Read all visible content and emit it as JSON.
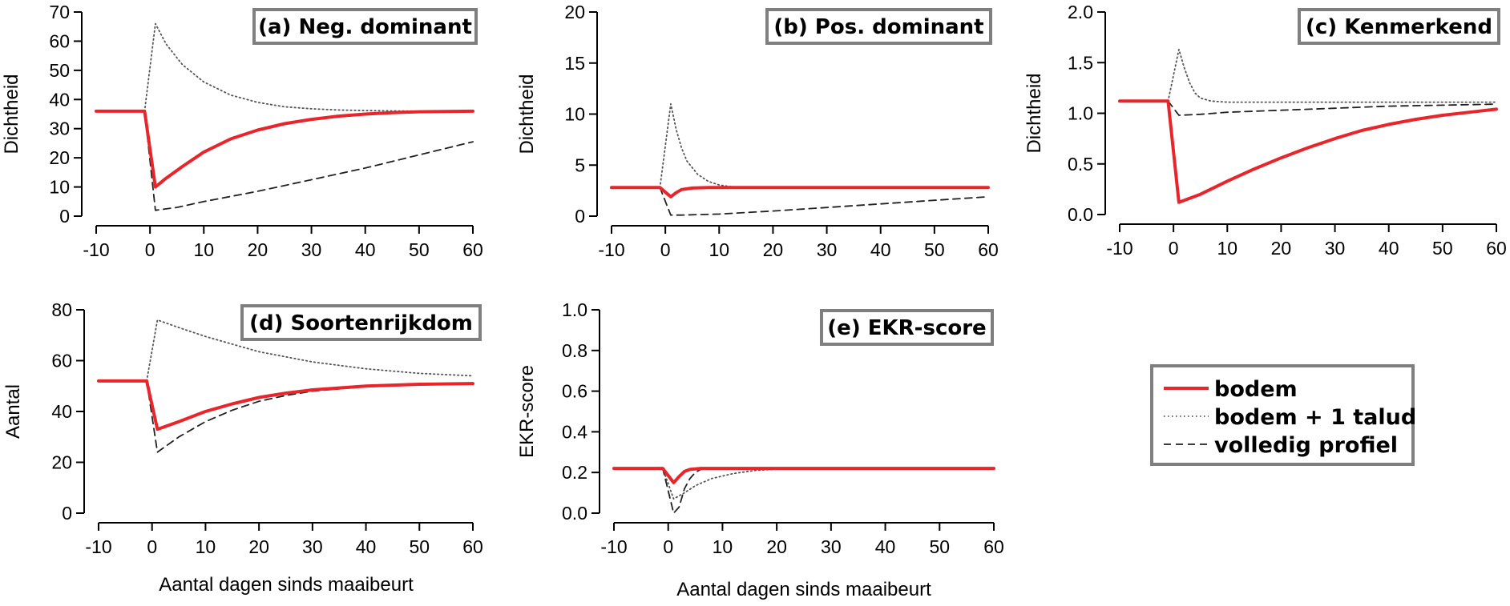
{
  "figure": {
    "xlabel_bottom": "Aantal dagen sinds maaibeurt",
    "legend": {
      "entries": [
        {
          "label": "bodem",
          "style": "solid",
          "color": "#e8252a"
        },
        {
          "label": "bodem + 1 talud",
          "style": "dotted",
          "color": "#555555"
        },
        {
          "label": "volledig profiel",
          "style": "dashed",
          "color": "#222222"
        }
      ],
      "placement": "bottom-right"
    },
    "colors": {
      "bodem": "#e8252a",
      "talud": "#555555",
      "profiel": "#222222",
      "title_box_border": "#7f7f7f"
    }
  },
  "chart_data": [
    {
      "type": "line",
      "title": "(a) Neg. dominant",
      "ylabel": "Dichtheid",
      "xlabel": "",
      "xlim": [
        -10,
        60
      ],
      "ylim": [
        0,
        70
      ],
      "xticks": [
        "-10",
        "0",
        "10",
        "20",
        "30",
        "40",
        "50",
        "60"
      ],
      "yticks": [
        "0",
        "10",
        "20",
        "30",
        "40",
        "50",
        "60",
        "70"
      ],
      "series": [
        {
          "name": "bodem",
          "x": [
            -10,
            -1,
            1,
            3,
            6,
            10,
            15,
            20,
            25,
            30,
            35,
            40,
            45,
            50,
            55,
            60
          ],
          "y": [
            36,
            36,
            10,
            13,
            17,
            22,
            26.5,
            29.5,
            31.7,
            33.2,
            34.3,
            35,
            35.5,
            35.8,
            35.9,
            36
          ]
        },
        {
          "name": "bodem + 1 talud",
          "x": [
            -10,
            -1,
            1,
            3,
            6,
            10,
            15,
            20,
            25,
            30,
            35,
            40,
            45,
            50,
            55,
            60
          ],
          "y": [
            36,
            36,
            66,
            59,
            52,
            46,
            41.5,
            39,
            37.5,
            36.8,
            36.4,
            36.2,
            36.1,
            36,
            36,
            36
          ]
        },
        {
          "name": "volledig profiel",
          "x": [
            -10,
            -1,
            1,
            5,
            10,
            20,
            30,
            40,
            50,
            60
          ],
          "y": [
            36,
            36,
            2,
            3,
            5,
            8.5,
            12.5,
            16.5,
            21,
            25.5
          ]
        }
      ]
    },
    {
      "type": "line",
      "title": "(b) Pos. dominant",
      "ylabel": "Dichtheid",
      "xlabel": "",
      "xlim": [
        -10,
        60
      ],
      "ylim": [
        0,
        20
      ],
      "xticks": [
        "-10",
        "0",
        "10",
        "20",
        "30",
        "40",
        "50",
        "60"
      ],
      "yticks": [
        "0",
        "5",
        "10",
        "15",
        "20"
      ],
      "series": [
        {
          "name": "bodem",
          "x": [
            -10,
            -1,
            1,
            2,
            3,
            5,
            8,
            12,
            60
          ],
          "y": [
            2.8,
            2.8,
            1.9,
            2.3,
            2.6,
            2.75,
            2.8,
            2.8,
            2.8
          ]
        },
        {
          "name": "bodem + 1 talud",
          "x": [
            -10,
            -1,
            1,
            2,
            3,
            4,
            6,
            8,
            10,
            12,
            14,
            60
          ],
          "y": [
            2.8,
            2.8,
            11,
            8.5,
            6.7,
            5.4,
            4.1,
            3.4,
            3.05,
            2.9,
            2.8,
            2.8
          ]
        },
        {
          "name": "volledig profiel",
          "x": [
            -10,
            -1,
            1,
            3,
            6,
            10,
            20,
            30,
            40,
            50,
            60
          ],
          "y": [
            2.8,
            2.8,
            0.1,
            0.1,
            0.15,
            0.2,
            0.5,
            0.85,
            1.2,
            1.55,
            1.9
          ]
        }
      ]
    },
    {
      "type": "line",
      "title": "(c) Kenmerkend",
      "ylabel": "Dichtheid",
      "xlabel": "",
      "xlim": [
        -10,
        60
      ],
      "ylim": [
        0,
        2
      ],
      "xticks": [
        "-10",
        "0",
        "10",
        "20",
        "30",
        "40",
        "50",
        "60"
      ],
      "yticks": [
        "0.0",
        "0.5",
        "1.0",
        "1.5",
        "2.0"
      ],
      "series": [
        {
          "name": "bodem",
          "x": [
            -10,
            -1,
            1,
            5,
            10,
            15,
            20,
            25,
            30,
            35,
            40,
            45,
            50,
            55,
            60
          ],
          "y": [
            1.12,
            1.12,
            0.12,
            0.2,
            0.33,
            0.45,
            0.56,
            0.66,
            0.75,
            0.83,
            0.89,
            0.94,
            0.98,
            1.01,
            1.04
          ]
        },
        {
          "name": "bodem + 1 talud",
          "x": [
            -10,
            -1,
            1,
            2,
            3,
            4,
            5,
            7,
            10,
            60
          ],
          "y": [
            1.12,
            1.12,
            1.63,
            1.45,
            1.3,
            1.2,
            1.15,
            1.12,
            1.11,
            1.11
          ]
        },
        {
          "name": "volledig profiel",
          "x": [
            -10,
            -1,
            1,
            5,
            10,
            20,
            30,
            40,
            50,
            60
          ],
          "y": [
            1.12,
            1.12,
            0.98,
            0.99,
            1.01,
            1.03,
            1.05,
            1.07,
            1.08,
            1.09
          ]
        }
      ]
    },
    {
      "type": "line",
      "title": "(d) Soortenrijkdom",
      "ylabel": "Aantal",
      "xlabel": "Aantal dagen sinds maaibeurt",
      "xlim": [
        -10,
        60
      ],
      "ylim": [
        0,
        80
      ],
      "xticks": [
        "-10",
        "0",
        "10",
        "20",
        "30",
        "40",
        "50",
        "60"
      ],
      "yticks": [
        "0",
        "20",
        "40",
        "60",
        "80"
      ],
      "series": [
        {
          "name": "bodem",
          "x": [
            -10,
            -1,
            1,
            5,
            10,
            15,
            20,
            25,
            30,
            40,
            50,
            60
          ],
          "y": [
            52,
            52,
            33,
            36,
            40,
            43,
            45.5,
            47.2,
            48.5,
            50,
            50.7,
            51
          ]
        },
        {
          "name": "bodem + 1 talud",
          "x": [
            -10,
            -1,
            1,
            5,
            10,
            15,
            20,
            30,
            40,
            50,
            60
          ],
          "y": [
            52,
            52,
            76,
            73,
            69.5,
            66.5,
            63.5,
            59.5,
            56.8,
            55,
            54
          ]
        },
        {
          "name": "volledig profiel",
          "x": [
            -10,
            -1,
            1,
            5,
            10,
            15,
            20,
            25,
            30,
            40,
            50,
            60
          ],
          "y": [
            52,
            52,
            24,
            30,
            36,
            40.5,
            44,
            46.3,
            48,
            49.8,
            50.5,
            51
          ]
        }
      ]
    },
    {
      "type": "line",
      "title": "(e) EKR-score",
      "ylabel": "EKR-score",
      "xlabel": "Aantal dagen sinds maaibeurt",
      "xlim": [
        -10,
        60
      ],
      "ylim": [
        0,
        1
      ],
      "xticks": [
        "-10",
        "0",
        "10",
        "20",
        "30",
        "40",
        "50",
        "60"
      ],
      "yticks": [
        "0.0",
        "0.2",
        "0.4",
        "0.6",
        "0.8",
        "1.0"
      ],
      "series": [
        {
          "name": "bodem",
          "x": [
            -10,
            -1,
            1,
            2,
            3,
            4,
            6,
            8,
            60
          ],
          "y": [
            0.22,
            0.22,
            0.15,
            0.18,
            0.205,
            0.215,
            0.22,
            0.22,
            0.22
          ]
        },
        {
          "name": "bodem + 1 talud",
          "x": [
            -10,
            -1,
            1,
            3,
            5,
            8,
            12,
            16,
            20,
            25,
            60
          ],
          "y": [
            0.22,
            0.22,
            0.07,
            0.1,
            0.135,
            0.17,
            0.195,
            0.21,
            0.217,
            0.22,
            0.22
          ]
        },
        {
          "name": "volledig profiel",
          "x": [
            -10,
            -1,
            1,
            2,
            3,
            4,
            5,
            6,
            8,
            60
          ],
          "y": [
            0.22,
            0.22,
            0.0,
            0.03,
            0.12,
            0.17,
            0.2,
            0.215,
            0.22,
            0.22
          ]
        }
      ]
    }
  ]
}
